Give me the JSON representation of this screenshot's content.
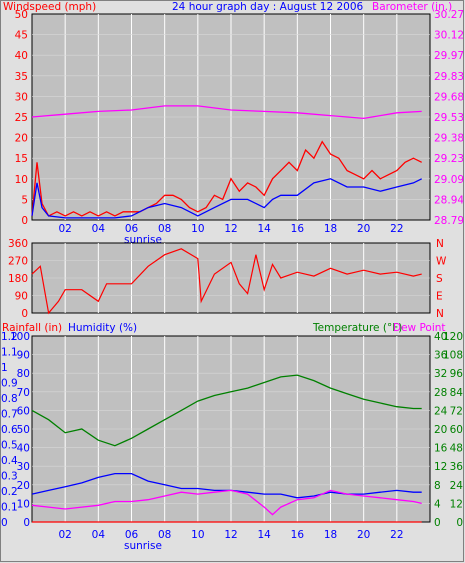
{
  "header": {
    "left_label": "Windspeed (mph)",
    "center_title": "24 hour graph day : August 12 2006",
    "right_label": "Barometer (in.)"
  },
  "colors": {
    "red": "#ff0000",
    "blue": "#0000ff",
    "magenta": "#ff00ff",
    "green": "#008000",
    "plot_bg": "#c0c0c0",
    "grid": "#ffffff"
  },
  "x_ticks": [
    "02",
    "04",
    "06",
    "08",
    "10",
    "12",
    "14",
    "16",
    "18",
    "20",
    "22"
  ],
  "sunrise_label": "sunrise",
  "chart_data": [
    {
      "type": "line",
      "name": "wind-barometer",
      "title": "24 hour graph day : August 12 2006",
      "ylabel_left": "Windspeed (mph)",
      "ylabel_right": "Barometer (in.)",
      "yticks_left": [
        "50",
        "45",
        "40",
        "35",
        "30",
        "25",
        "20",
        "15",
        "10",
        "5",
        "0"
      ],
      "yticks_right": [
        "30.27",
        "30.12",
        "29.97",
        "29.83",
        "29.68",
        "29.53",
        "29.38",
        "29.23",
        "29.09",
        "28.94",
        "28.79"
      ],
      "ylim_left": [
        0,
        50
      ],
      "ylim_right": [
        28.79,
        30.27
      ],
      "xlim": [
        0,
        24
      ],
      "series": [
        {
          "color": "#ff0000",
          "axis": "left",
          "points": [
            [
              0,
              1
            ],
            [
              0.3,
              14
            ],
            [
              0.6,
              4
            ],
            [
              1,
              1
            ],
            [
              1.5,
              2
            ],
            [
              2,
              1
            ],
            [
              2.5,
              2
            ],
            [
              3,
              1
            ],
            [
              3.5,
              2
            ],
            [
              4,
              1
            ],
            [
              4.5,
              2
            ],
            [
              5,
              1
            ],
            [
              5.5,
              2
            ],
            [
              6,
              2
            ],
            [
              6.5,
              2
            ],
            [
              7,
              3
            ],
            [
              7.5,
              4
            ],
            [
              8,
              6
            ],
            [
              8.5,
              6
            ],
            [
              9,
              5
            ],
            [
              9.5,
              3
            ],
            [
              10,
              2
            ],
            [
              10.5,
              3
            ],
            [
              11,
              6
            ],
            [
              11.5,
              5
            ],
            [
              12,
              10
            ],
            [
              12.5,
              7
            ],
            [
              13,
              9
            ],
            [
              13.5,
              8
            ],
            [
              14,
              6
            ],
            [
              14.5,
              10
            ],
            [
              15,
              12
            ],
            [
              15.5,
              14
            ],
            [
              16,
              12
            ],
            [
              16.5,
              17
            ],
            [
              17,
              15
            ],
            [
              17.5,
              19
            ],
            [
              18,
              16
            ],
            [
              18.5,
              15
            ],
            [
              19,
              12
            ],
            [
              19.5,
              11
            ],
            [
              20,
              10
            ],
            [
              20.5,
              12
            ],
            [
              21,
              10
            ],
            [
              21.5,
              11
            ],
            [
              22,
              12
            ],
            [
              22.5,
              14
            ],
            [
              23,
              15
            ],
            [
              23.5,
              14
            ]
          ]
        },
        {
          "color": "#0000ff",
          "axis": "left",
          "points": [
            [
              0,
              1
            ],
            [
              0.3,
              9
            ],
            [
              0.6,
              3
            ],
            [
              1,
              1
            ],
            [
              2,
              0.5
            ],
            [
              3,
              0.5
            ],
            [
              4,
              0.5
            ],
            [
              5,
              0.5
            ],
            [
              6,
              1
            ],
            [
              7,
              3
            ],
            [
              8,
              4
            ],
            [
              9,
              3
            ],
            [
              10,
              1
            ],
            [
              11,
              3
            ],
            [
              12,
              5
            ],
            [
              13,
              5
            ],
            [
              14,
              3
            ],
            [
              14.5,
              5
            ],
            [
              15,
              6
            ],
            [
              16,
              6
            ],
            [
              17,
              9
            ],
            [
              18,
              10
            ],
            [
              19,
              8
            ],
            [
              20,
              8
            ],
            [
              21,
              7
            ],
            [
              22,
              8
            ],
            [
              23,
              9
            ],
            [
              23.5,
              10
            ]
          ]
        },
        {
          "color": "#ff00ff",
          "axis": "right",
          "points": [
            [
              0,
              29.53
            ],
            [
              2,
              29.55
            ],
            [
              4,
              29.57
            ],
            [
              6,
              29.58
            ],
            [
              8,
              29.61
            ],
            [
              10,
              29.61
            ],
            [
              12,
              29.58
            ],
            [
              14,
              29.57
            ],
            [
              16,
              29.56
            ],
            [
              18,
              29.54
            ],
            [
              20,
              29.52
            ],
            [
              21,
              29.54
            ],
            [
              22,
              29.56
            ],
            [
              23.5,
              29.57
            ]
          ]
        }
      ]
    },
    {
      "type": "line",
      "name": "wind-direction",
      "yticks_left": [
        "360",
        "270",
        "180",
        "90",
        "0"
      ],
      "yticks_right": [
        "N",
        "W",
        "S",
        "E",
        "N"
      ],
      "ylim": [
        0,
        360
      ],
      "xlim": [
        0,
        24
      ],
      "series": [
        {
          "color": "#ff0000",
          "points": [
            [
              0,
              200
            ],
            [
              0.5,
              240
            ],
            [
              1,
              0
            ],
            [
              1.6,
              60
            ],
            [
              2,
              120
            ],
            [
              3,
              120
            ],
            [
              4,
              60
            ],
            [
              4.5,
              150
            ],
            [
              6,
              150
            ],
            [
              7,
              240
            ],
            [
              8,
              300
            ],
            [
              9,
              330
            ],
            [
              10,
              280
            ],
            [
              10.2,
              60
            ],
            [
              11,
              200
            ],
            [
              12,
              260
            ],
            [
              12.5,
              150
            ],
            [
              13,
              100
            ],
            [
              13.5,
              300
            ],
            [
              14,
              120
            ],
            [
              14.5,
              250
            ],
            [
              15,
              180
            ],
            [
              16,
              210
            ],
            [
              17,
              190
            ],
            [
              18,
              230
            ],
            [
              19,
              200
            ],
            [
              20,
              220
            ],
            [
              21,
              200
            ],
            [
              22,
              210
            ],
            [
              23,
              190
            ],
            [
              23.5,
              200
            ]
          ]
        }
      ]
    },
    {
      "type": "line",
      "name": "rain-humidity-temperature",
      "left_label_1": "Rainfall (in)",
      "left_label_2": "Humidity (%)",
      "right_label_1": "Temperature (°F)",
      "right_label_2": "Dew Point",
      "yticks_rain": [
        "1.2",
        "1.1",
        "1",
        "0.9",
        "0.8",
        "0.7",
        "0.6",
        "0.5",
        "0.4",
        "0.3",
        "0.2",
        "0.1",
        "0"
      ],
      "yticks_humidity": [
        "100",
        "90",
        "80",
        "70",
        "60",
        "50",
        "40",
        "30",
        "20",
        "10",
        "0"
      ],
      "yticks_temp_inner": [
        "40",
        "36",
        "32",
        "28",
        "24",
        "20",
        "16",
        "12",
        "8",
        "4",
        "0"
      ],
      "yticks_temp_outer": [
        "120",
        "108",
        "96",
        "84",
        "72",
        "60",
        "48",
        "36",
        "24",
        "12",
        "0"
      ],
      "ylim_rain": [
        0,
        1.2
      ],
      "ylim_humidity": [
        0,
        100
      ],
      "xlim": [
        0,
        24
      ],
      "series": [
        {
          "color": "#008000",
          "axis": "humidity",
          "points": [
            [
              0,
              60
            ],
            [
              1,
              55
            ],
            [
              2,
              48
            ],
            [
              3,
              50
            ],
            [
              4,
              44
            ],
            [
              5,
              41
            ],
            [
              6,
              45
            ],
            [
              7,
              50
            ],
            [
              8,
              55
            ],
            [
              9,
              60
            ],
            [
              10,
              65
            ],
            [
              11,
              68
            ],
            [
              12,
              70
            ],
            [
              13,
              72
            ],
            [
              14,
              75
            ],
            [
              15,
              78
            ],
            [
              16,
              79
            ],
            [
              17,
              76
            ],
            [
              18,
              72
            ],
            [
              19,
              69
            ],
            [
              20,
              66
            ],
            [
              21,
              64
            ],
            [
              22,
              62
            ],
            [
              23,
              61
            ],
            [
              23.5,
              61
            ]
          ]
        },
        {
          "color": "#0000ff",
          "axis": "humidity",
          "points": [
            [
              0,
              15
            ],
            [
              1,
              17
            ],
            [
              2,
              19
            ],
            [
              3,
              21
            ],
            [
              4,
              24
            ],
            [
              5,
              26
            ],
            [
              6,
              26
            ],
            [
              7,
              22
            ],
            [
              8,
              20
            ],
            [
              9,
              18
            ],
            [
              10,
              18
            ],
            [
              11,
              17
            ],
            [
              12,
              17
            ],
            [
              13,
              16
            ],
            [
              14,
              15
            ],
            [
              15,
              15
            ],
            [
              16,
              13
            ],
            [
              17,
              14
            ],
            [
              18,
              16
            ],
            [
              19,
              15
            ],
            [
              20,
              15
            ],
            [
              21,
              16
            ],
            [
              22,
              17
            ],
            [
              23,
              16
            ],
            [
              23.5,
              16
            ]
          ]
        },
        {
          "color": "#ff00ff",
          "axis": "humidity",
          "points": [
            [
              0,
              9
            ],
            [
              1,
              8
            ],
            [
              2,
              7
            ],
            [
              3,
              8
            ],
            [
              4,
              9
            ],
            [
              5,
              11
            ],
            [
              6,
              11
            ],
            [
              7,
              12
            ],
            [
              8,
              14
            ],
            [
              9,
              16
            ],
            [
              10,
              15
            ],
            [
              11,
              16
            ],
            [
              12,
              17
            ],
            [
              13,
              15
            ],
            [
              14,
              8
            ],
            [
              14.5,
              4
            ],
            [
              15,
              8
            ],
            [
              16,
              12
            ],
            [
              17,
              13
            ],
            [
              18,
              17
            ],
            [
              19,
              15
            ],
            [
              20,
              14
            ],
            [
              21,
              13
            ],
            [
              22,
              12
            ],
            [
              23,
              11
            ],
            [
              23.5,
              10
            ]
          ]
        },
        {
          "color": "#ff0000",
          "axis": "rain",
          "points": [
            [
              0,
              0
            ],
            [
              23.5,
              0
            ]
          ]
        }
      ]
    }
  ]
}
